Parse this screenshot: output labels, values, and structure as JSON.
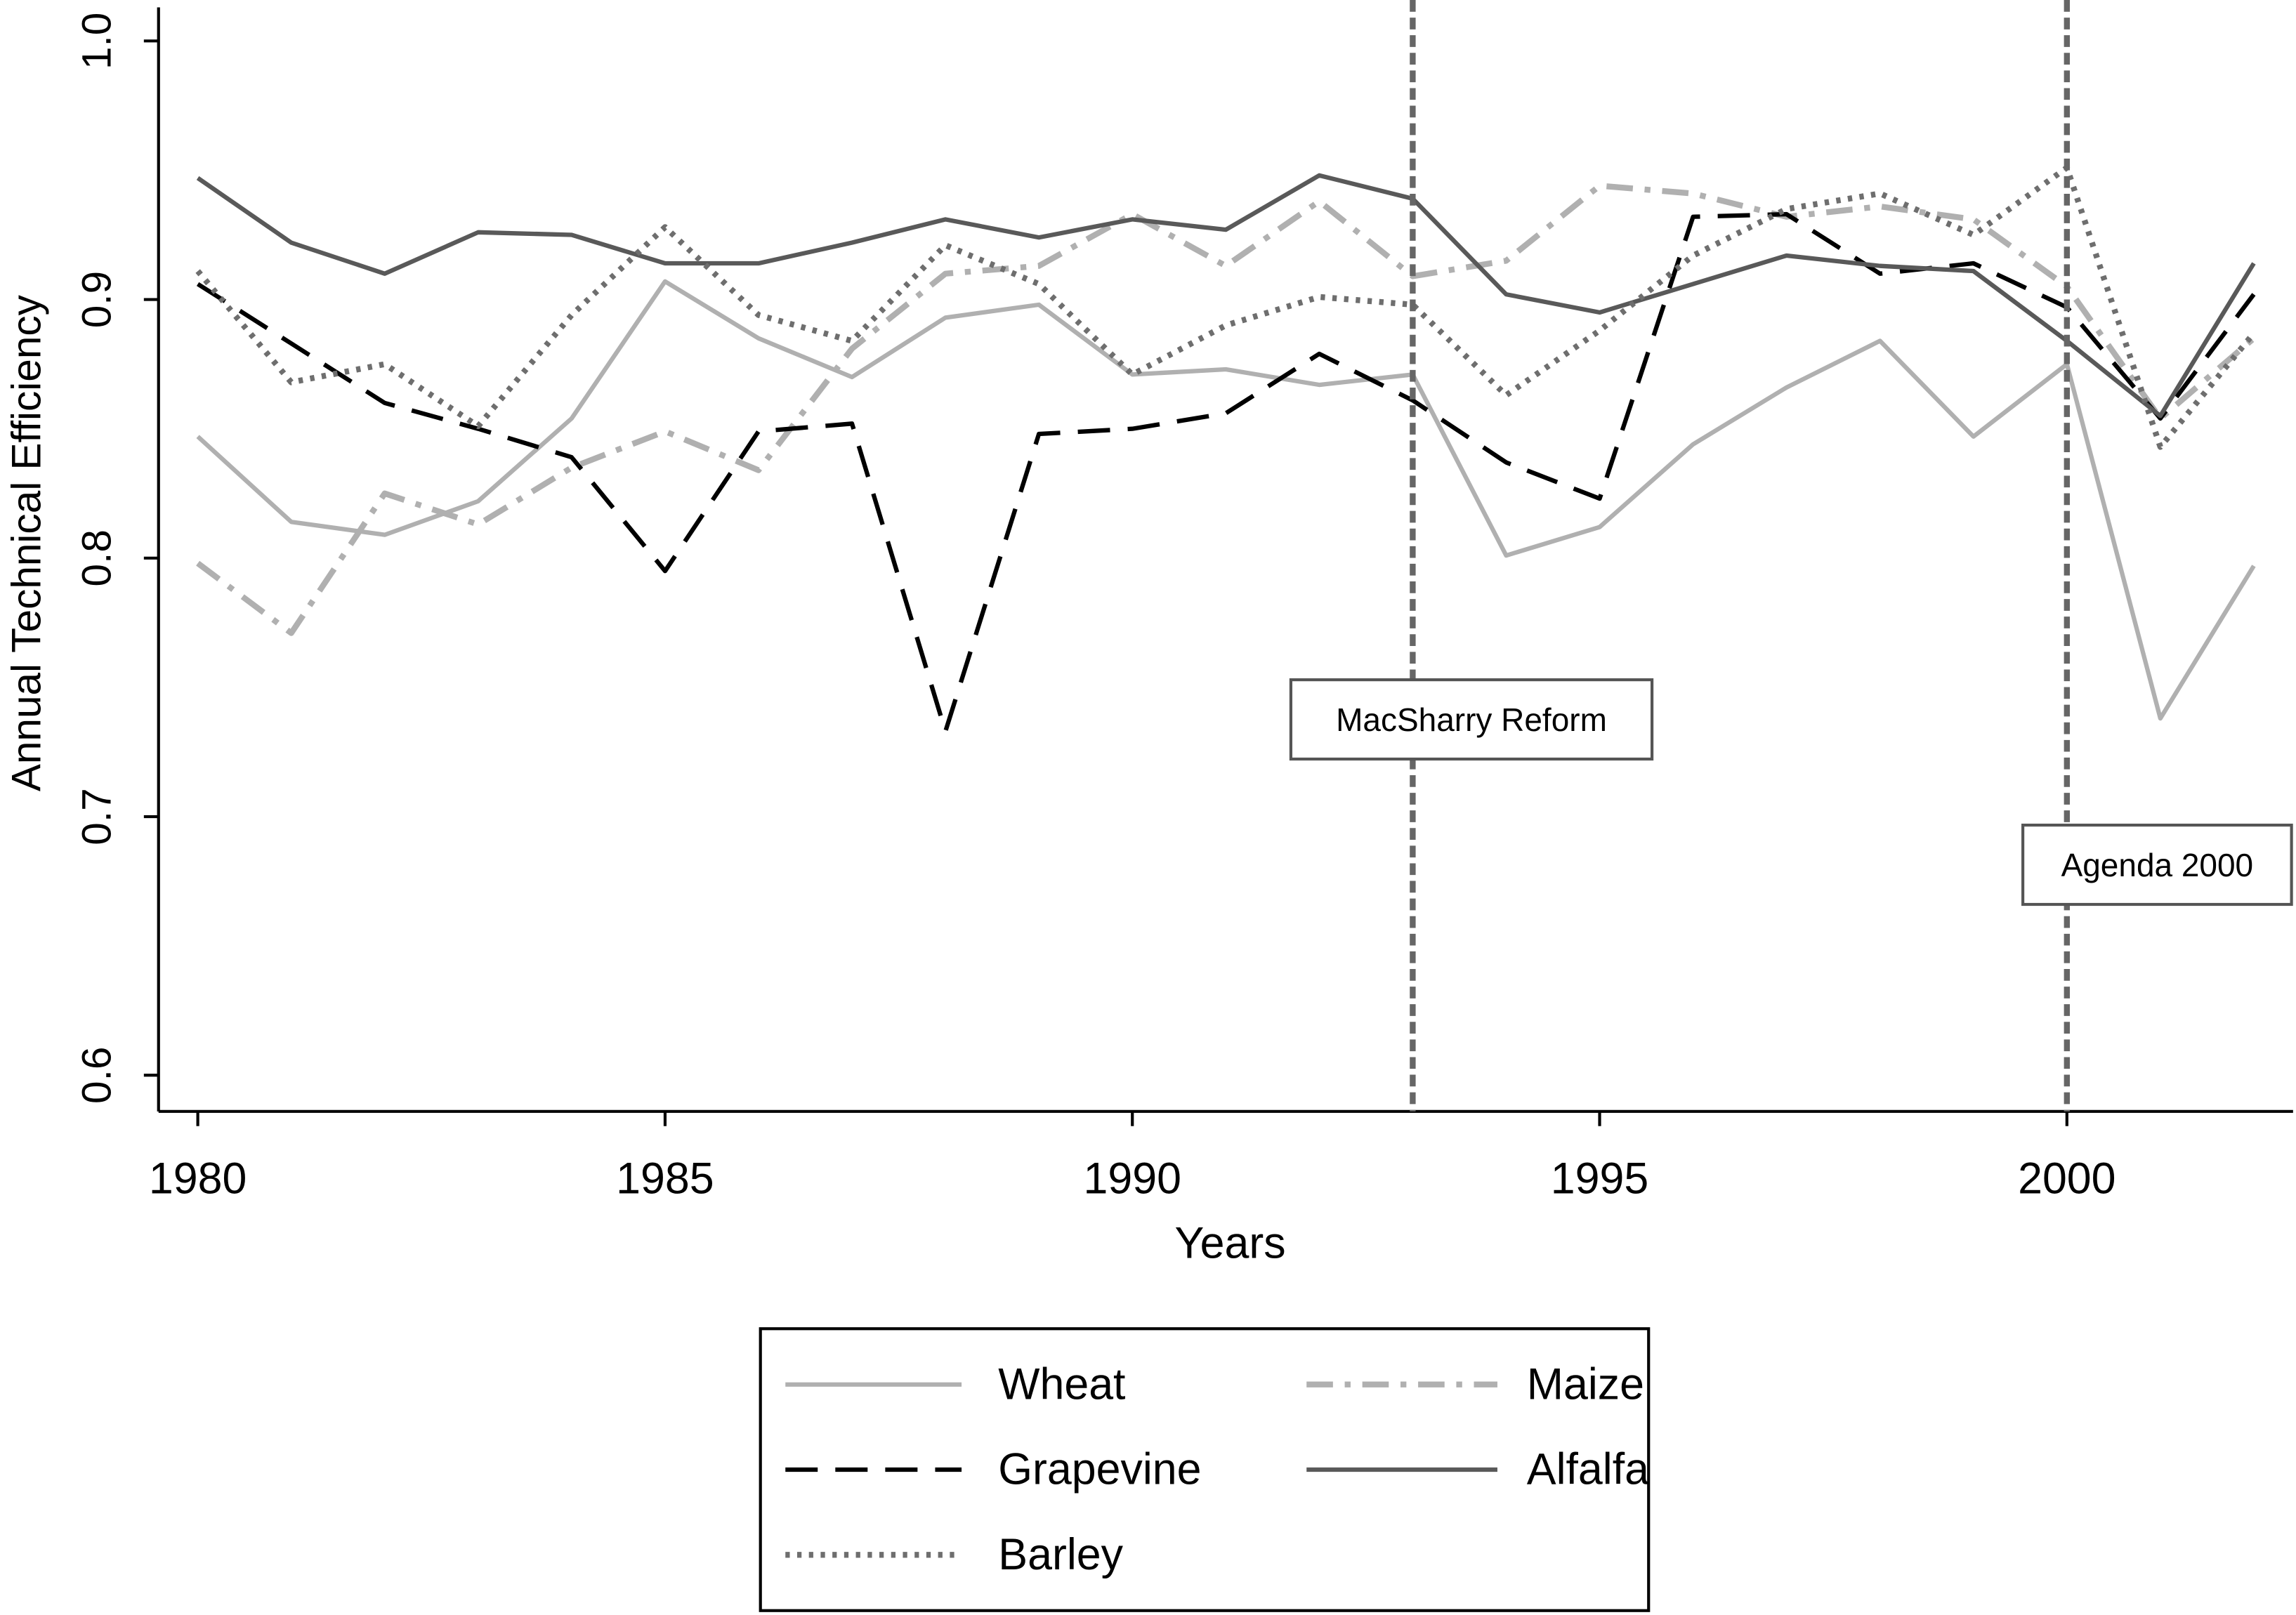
{
  "chart_data": {
    "type": "line",
    "x_label": "Years",
    "y_label": "Annual Technical Efficiency",
    "x": [
      1980,
      1981,
      1982,
      1983,
      1984,
      1985,
      1986,
      1987,
      1988,
      1989,
      1990,
      1991,
      1992,
      1993,
      1994,
      1995,
      1996,
      1997,
      1998,
      1999,
      2000,
      2001,
      2002
    ],
    "series": [
      {
        "name": "Wheat",
        "color": "#b0b0b0",
        "style": "solid",
        "values": [
          0.847,
          0.814,
          0.809,
          0.822,
          0.854,
          0.907,
          0.885,
          0.87,
          0.893,
          0.898,
          0.871,
          0.873,
          0.867,
          0.871,
          0.801,
          0.812,
          0.844,
          0.866,
          0.884,
          0.847,
          0.875,
          0.738,
          0.797
        ]
      },
      {
        "name": "Maize",
        "color": "#b0b0b0",
        "style": "dashdot",
        "values": [
          0.798,
          0.771,
          0.825,
          0.813,
          0.835,
          0.849,
          0.834,
          0.881,
          0.91,
          0.913,
          0.933,
          0.913,
          0.938,
          0.909,
          0.915,
          0.944,
          0.941,
          0.932,
          0.936,
          0.931,
          0.905,
          0.854,
          0.885
        ]
      },
      {
        "name": "Grapevine",
        "color": "#000000",
        "style": "dash",
        "values": [
          0.906,
          0.883,
          0.86,
          0.85,
          0.839,
          0.795,
          0.849,
          0.852,
          0.733,
          0.848,
          0.85,
          0.856,
          0.879,
          0.861,
          0.837,
          0.823,
          0.932,
          0.933,
          0.91,
          0.914,
          0.897,
          0.854,
          0.902
        ]
      },
      {
        "name": "Alfalfa",
        "color": "#595959",
        "style": "solid",
        "values": [
          0.947,
          0.922,
          0.91,
          0.926,
          0.925,
          0.914,
          0.914,
          0.922,
          0.931,
          0.924,
          0.931,
          0.927,
          0.948,
          0.939,
          0.902,
          0.895,
          0.906,
          0.917,
          0.913,
          0.911,
          0.884,
          0.855,
          0.914
        ]
      },
      {
        "name": "Barley",
        "color": "#6e6e6e",
        "style": "dot",
        "values": [
          0.911,
          0.868,
          0.875,
          0.851,
          0.894,
          0.928,
          0.894,
          0.884,
          0.921,
          0.906,
          0.871,
          0.89,
          0.901,
          0.898,
          0.863,
          0.888,
          0.917,
          0.935,
          0.941,
          0.925,
          0.951,
          0.843,
          0.887
        ]
      }
    ],
    "annotations": [
      {
        "x": 1993,
        "label": "MacSharry Reform"
      },
      {
        "x": 2000,
        "label": "Agenda 2000"
      }
    ],
    "xlim": [
      1979.58,
      2002.42
    ],
    "xticks": [
      1980,
      1985,
      1990,
      1995,
      2000
    ],
    "ylim": [
      0.586,
      1.013
    ],
    "yticks": [
      0.6,
      0.7,
      0.8,
      0.9,
      {
        "value": 1,
        "label": "1.0"
      }
    ],
    "grid": false,
    "legend": "bottom"
  }
}
